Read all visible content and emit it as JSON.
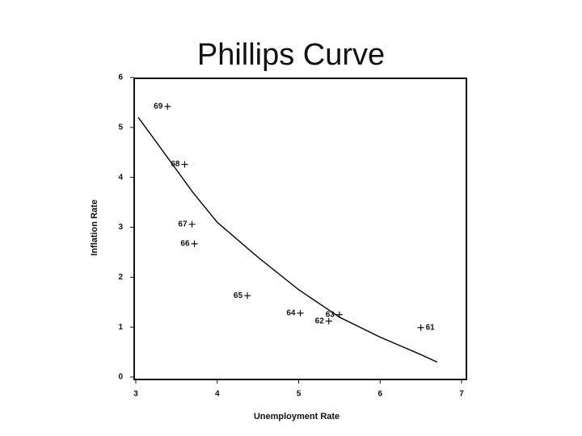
{
  "chart_data": {
    "type": "scatter",
    "title": "Phillips Curve",
    "x_label": "Unemployment Rate",
    "y_label": "Inflation Rate",
    "xlim": [
      3,
      7
    ],
    "ylim": [
      0,
      6
    ],
    "xticks": [
      3,
      4,
      5,
      6,
      7
    ],
    "yticks": [
      0,
      1,
      2,
      3,
      4,
      5,
      6
    ],
    "color": "#111111",
    "series": [
      {
        "x": [
          6.5,
          5.37,
          5.5,
          5.02,
          4.37,
          3.72,
          3.69,
          3.6,
          3.39
        ],
        "values": [
          0.99,
          1.12,
          1.25,
          1.28,
          1.63,
          2.67,
          3.06,
          4.26,
          5.42
        ],
        "point_labels": [
          "61",
          "62",
          "63",
          "64",
          "65",
          "66",
          "67",
          "68",
          "69"
        ]
      }
    ],
    "curve": {
      "x": [
        3.03,
        3.3,
        3.7,
        4,
        4.5,
        5,
        5.5,
        6,
        6.5,
        6.7
      ],
      "y": [
        5.2,
        4.6,
        3.7,
        3.1,
        2.4,
        1.75,
        1.2,
        0.8,
        0.45,
        0.3
      ]
    }
  }
}
